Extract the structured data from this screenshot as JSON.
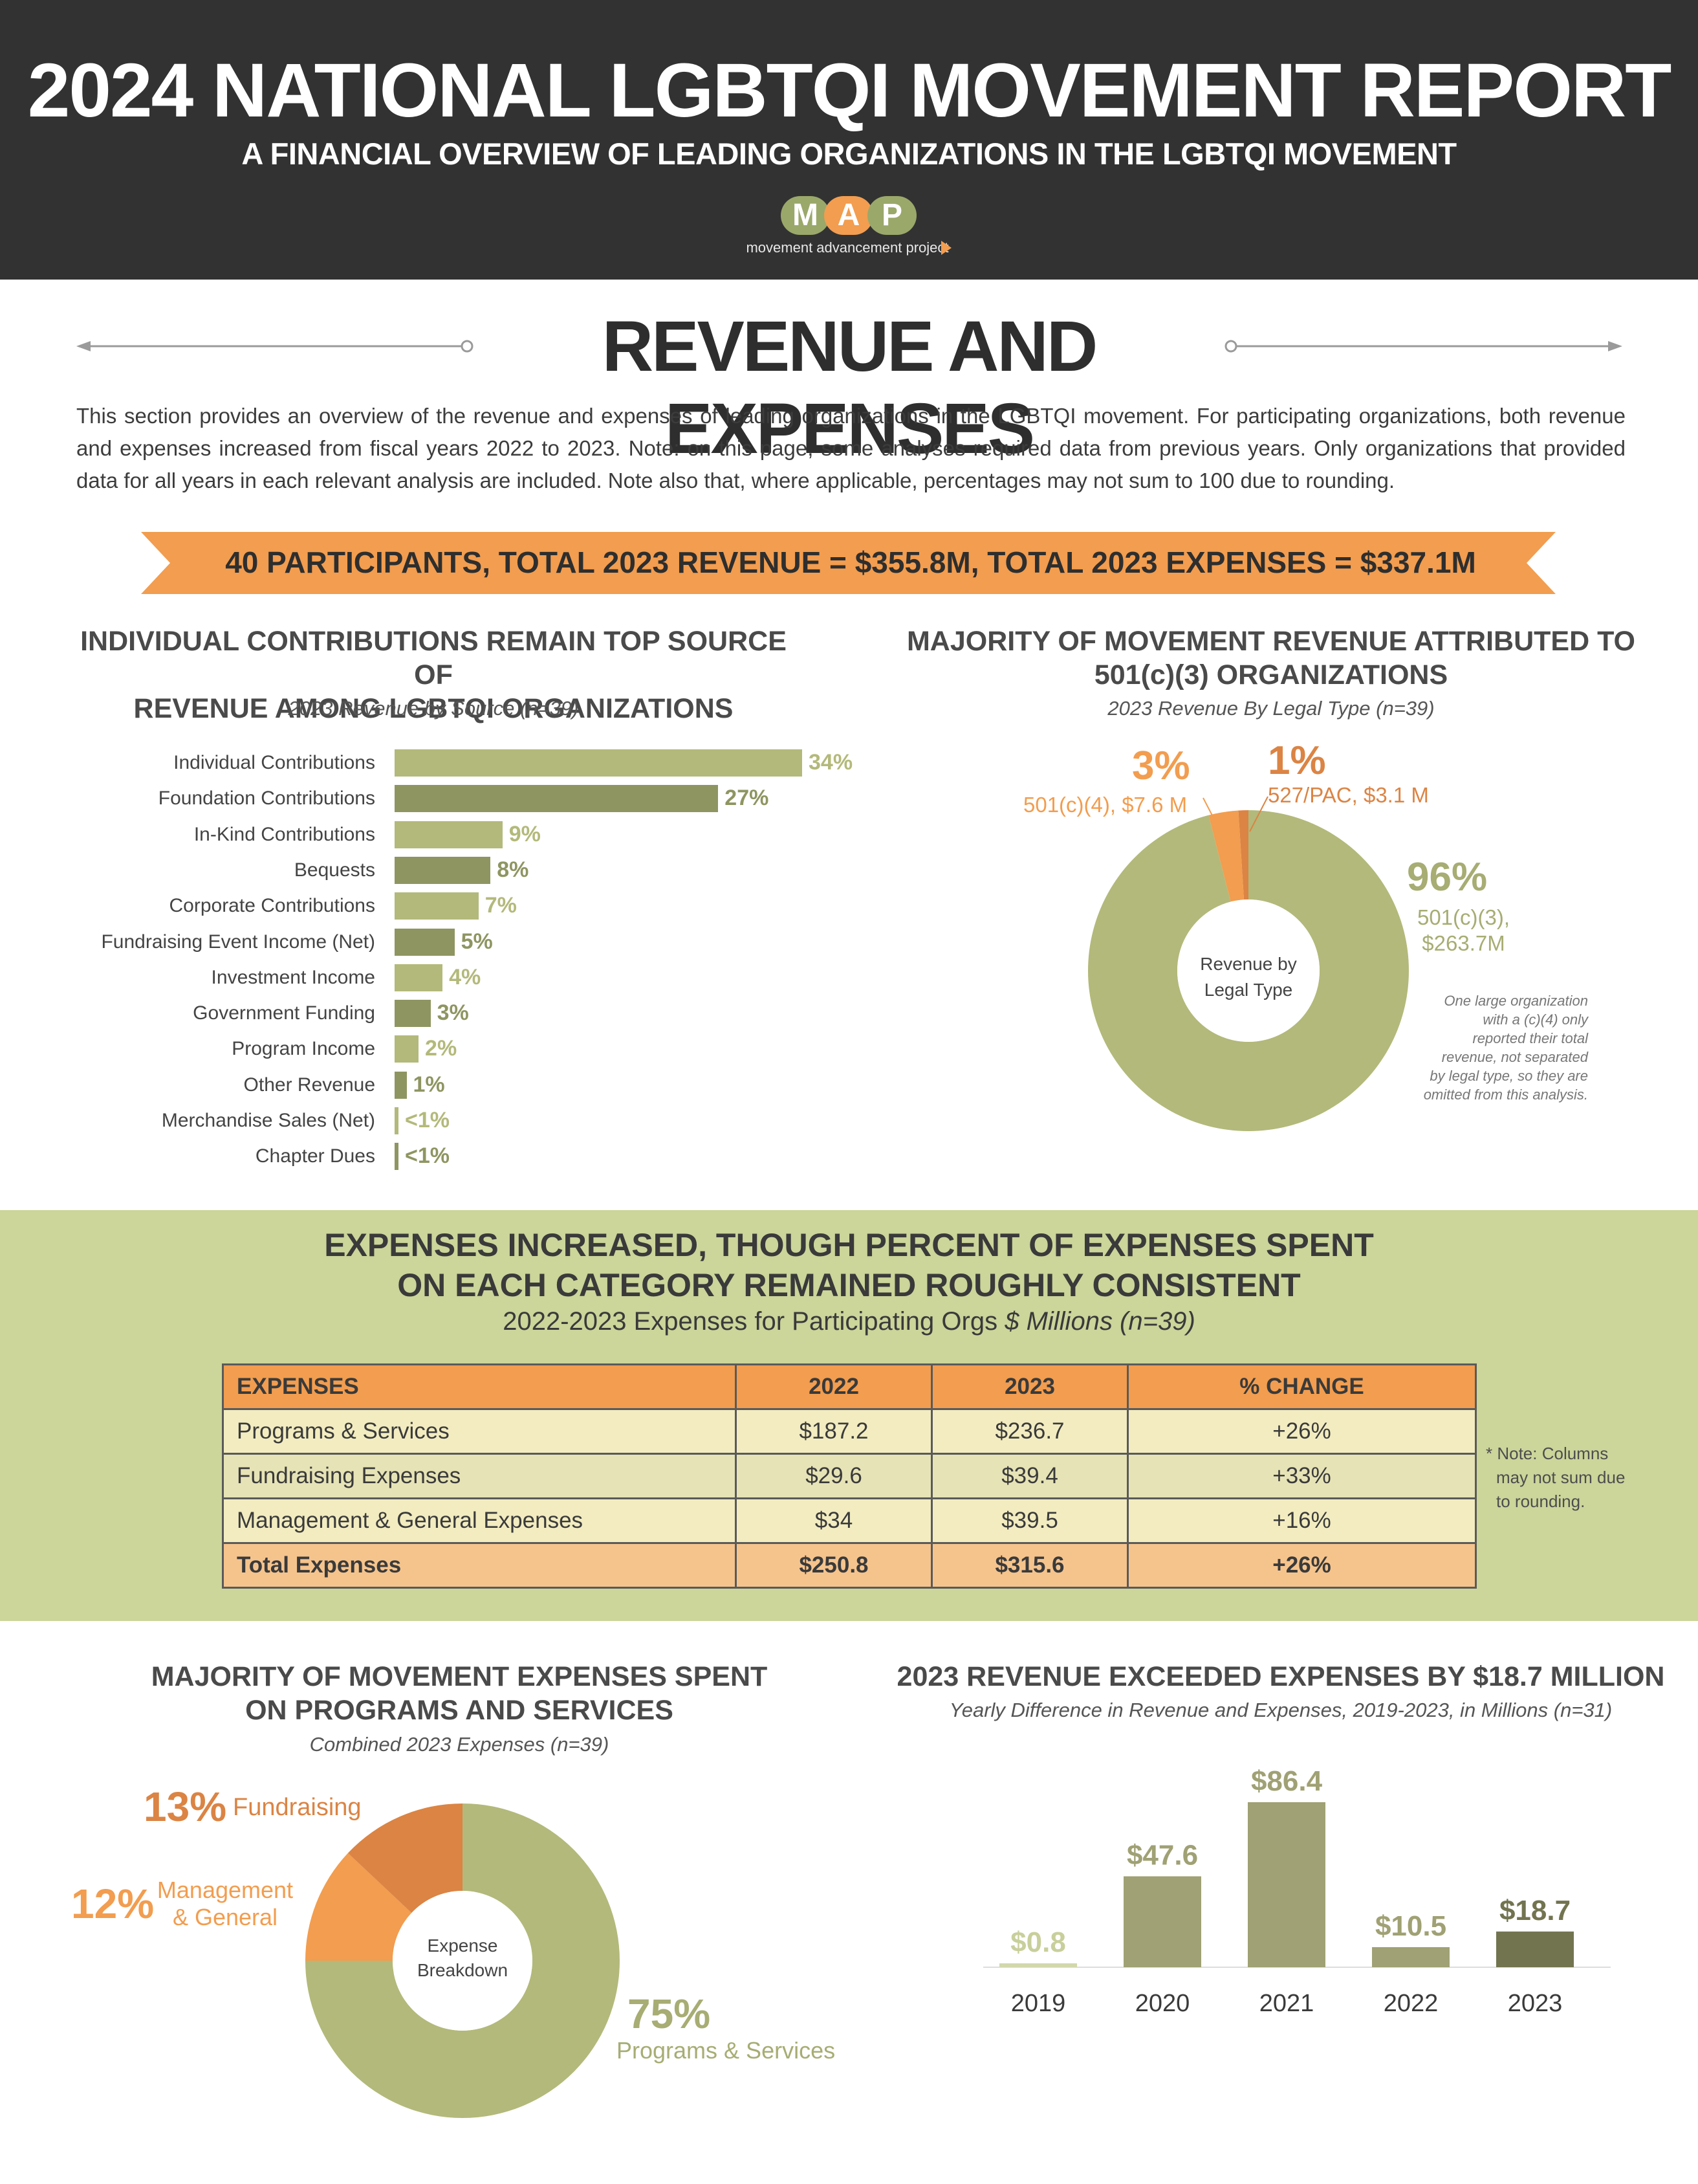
{
  "header": {
    "title": "2024 NATIONAL LGBTQI MOVEMENT REPORT",
    "subtitle": "A FINANCIAL OVERVIEW OF LEADING ORGANIZATIONS IN THE LGBTQI MOVEMENT",
    "logo_letters": [
      "M",
      "A",
      "P"
    ],
    "logo_tagline": "movement advancement project",
    "colors": {
      "dark": "#323232",
      "logo_green": "#9aa86a",
      "logo_orange": "#f29d4f"
    }
  },
  "section": {
    "title": "REVENUE AND EXPENSES",
    "intro": "This section provides an overview of the revenue and expenses of leading organizations in the LGBTQI movement. For participating organizations, both revenue and expenses increased from fiscal years 2022 to 2023. Note: on this page, some analyses required data from previous years. Only organizations that provided data for all years in each relevant analysis are included. Note also that, where applicable, percentages may not sum to 100 due to rounding.",
    "banner": "40 PARTICIPANTS, TOTAL 2023 REVENUE = $355.8M, TOTAL 2023 EXPENSES = $337.1M"
  },
  "revenue_source": {
    "title_line1": "INDIVIDUAL CONTRIBUTIONS REMAIN TOP SOURCE OF",
    "title_line2": "REVENUE AMONG LGBTQI ORGANIZATIONS",
    "subtitle": "2023 Revenue by Source (n=39)"
  },
  "legal_type": {
    "title_line1": "MAJORITY OF MOVEMENT REVENUE ATTRIBUTED TO",
    "title_line2": "501(c)(3) ORGANIZATIONS",
    "subtitle": "2023 Revenue By Legal Type (n=39)",
    "center_line1": "Revenue by",
    "center_line2": "Legal Type",
    "pct_c4": "3%",
    "lbl_c4": "501(c)(4), $7.6 M",
    "pct_pac": "1%",
    "lbl_pac": "527/PAC, $3.1 M",
    "pct_c3": "96%",
    "lbl_c3_line1": "501(c)(3),",
    "lbl_c3_line2": "$263.7M",
    "footnote_lines": [
      "One large organization",
      "with a (c)(4) only",
      "reported their total",
      "revenue, not separated",
      "by legal type, so they are",
      "omitted from this analysis."
    ]
  },
  "expenses_table": {
    "title_line1": "EXPENSES INCREASED, THOUGH PERCENT OF EXPENSES SPENT",
    "title_line2": "ON EACH CATEGORY REMAINED ROUGHLY CONSISTENT",
    "subtitle_plain": "2022-2023 Expenses for Participating Orgs",
    "subtitle_italic": "$ Millions (n=39)",
    "headers": [
      "EXPENSES",
      "2022",
      "2023",
      "% CHANGE"
    ],
    "rows": [
      [
        "Programs & Services",
        "$187.2",
        "$236.7",
        "+26%"
      ],
      [
        "Fundraising Expenses",
        "$29.6",
        "$39.4",
        "+33%"
      ],
      [
        "Management & General Expenses",
        "$34",
        "$39.5",
        "+16%"
      ]
    ],
    "total": [
      "Total Expenses",
      "$250.8",
      "$315.6",
      "+26%"
    ],
    "note_lines": [
      "* Note: Columns",
      "may not sum due",
      "to rounding."
    ]
  },
  "expense_breakdown": {
    "title_line1": "MAJORITY OF MOVEMENT EXPENSES SPENT",
    "title_line2": "ON PROGRAMS AND SERVICES",
    "subtitle": "Combined 2023 Expenses (n=39)",
    "center_line1": "Expense",
    "center_line2": "Breakdown",
    "pct_fund": "13%",
    "lbl_fund": "Fundraising",
    "pct_mgmt": "12%",
    "lbl_mgmt_line1": "Management",
    "lbl_mgmt_line2": "& General",
    "pct_prog": "75%",
    "lbl_prog": "Programs & Services"
  },
  "difference": {
    "title": "2023 REVENUE EXCEEDED EXPENSES BY $18.7 MILLION",
    "subtitle": "Yearly Difference in Revenue and Expenses, 2019-2023, in Millions (n=31)"
  },
  "chart_data": [
    {
      "type": "bar",
      "orientation": "horizontal",
      "title": "INDIVIDUAL CONTRIBUTIONS REMAIN TOP SOURCE OF REVENUE AMONG LGBTQI ORGANIZATIONS",
      "subtitle": "2023 Revenue by Source (n=39)",
      "categories": [
        "Individual Contributions",
        "Foundation Contributions",
        "In-Kind Contributions",
        "Bequests",
        "Corporate Contributions",
        "Fundraising Event Income (Net)",
        "Investment Income",
        "Government Funding",
        "Program Income",
        "Other Revenue",
        "Merchandise Sales (Net)",
        "Chapter Dues"
      ],
      "values": [
        34,
        27,
        9,
        8,
        7,
        5,
        4,
        3,
        2,
        1,
        0.3,
        0.3
      ],
      "labels": [
        "34%",
        "27%",
        "9%",
        "8%",
        "7%",
        "5%",
        "4%",
        "3%",
        "2%",
        "1%",
        "<1%",
        "<1%"
      ],
      "unit": "percent",
      "colors": [
        "#b3b97a",
        "#8f9561"
      ]
    },
    {
      "type": "pie",
      "donut": true,
      "title": "MAJORITY OF MOVEMENT REVENUE ATTRIBUTED TO 501(c)(3) ORGANIZATIONS",
      "categories": [
        "501(c)(3)",
        "501(c)(4)",
        "527/PAC"
      ],
      "values": [
        96,
        3,
        1
      ],
      "amounts_millions": [
        263.7,
        7.6,
        3.1
      ],
      "colors": [
        "#b3b97a",
        "#f29d4f",
        "#db8444"
      ]
    },
    {
      "type": "table",
      "title": "EXPENSES INCREASED, THOUGH PERCENT OF EXPENSES SPENT ON EACH CATEGORY REMAINED ROUGHLY CONSISTENT",
      "columns": [
        "EXPENSES",
        "2022",
        "2023",
        "% CHANGE"
      ],
      "rows": [
        [
          "Programs & Services",
          187.2,
          236.7,
          "+26%"
        ],
        [
          "Fundraising Expenses",
          29.6,
          39.4,
          "+33%"
        ],
        [
          "Management & General Expenses",
          34,
          39.5,
          "+16%"
        ],
        [
          "Total Expenses",
          250.8,
          315.6,
          "+26%"
        ]
      ]
    },
    {
      "type": "pie",
      "donut": true,
      "title": "MAJORITY OF MOVEMENT EXPENSES SPENT ON PROGRAMS AND SERVICES",
      "categories": [
        "Programs & Services",
        "Fundraising",
        "Management & General"
      ],
      "values": [
        75,
        13,
        12
      ],
      "colors": [
        "#b3b97a",
        "#db8444",
        "#f29d4f"
      ]
    },
    {
      "type": "bar",
      "title": "2023 REVENUE EXCEEDED EXPENSES BY $18.7 MILLION",
      "categories": [
        "2019",
        "2020",
        "2021",
        "2022",
        "2023"
      ],
      "values": [
        0.8,
        47.6,
        86.4,
        10.5,
        18.7
      ],
      "labels": [
        "$0.8",
        "$47.6",
        "$86.4",
        "$10.5",
        "$18.7"
      ],
      "ylim": [
        0,
        86.4
      ],
      "colors": [
        "#d3d8ab",
        "#a0a174",
        "#a0a174",
        "#a0a174",
        "#727450"
      ]
    }
  ]
}
